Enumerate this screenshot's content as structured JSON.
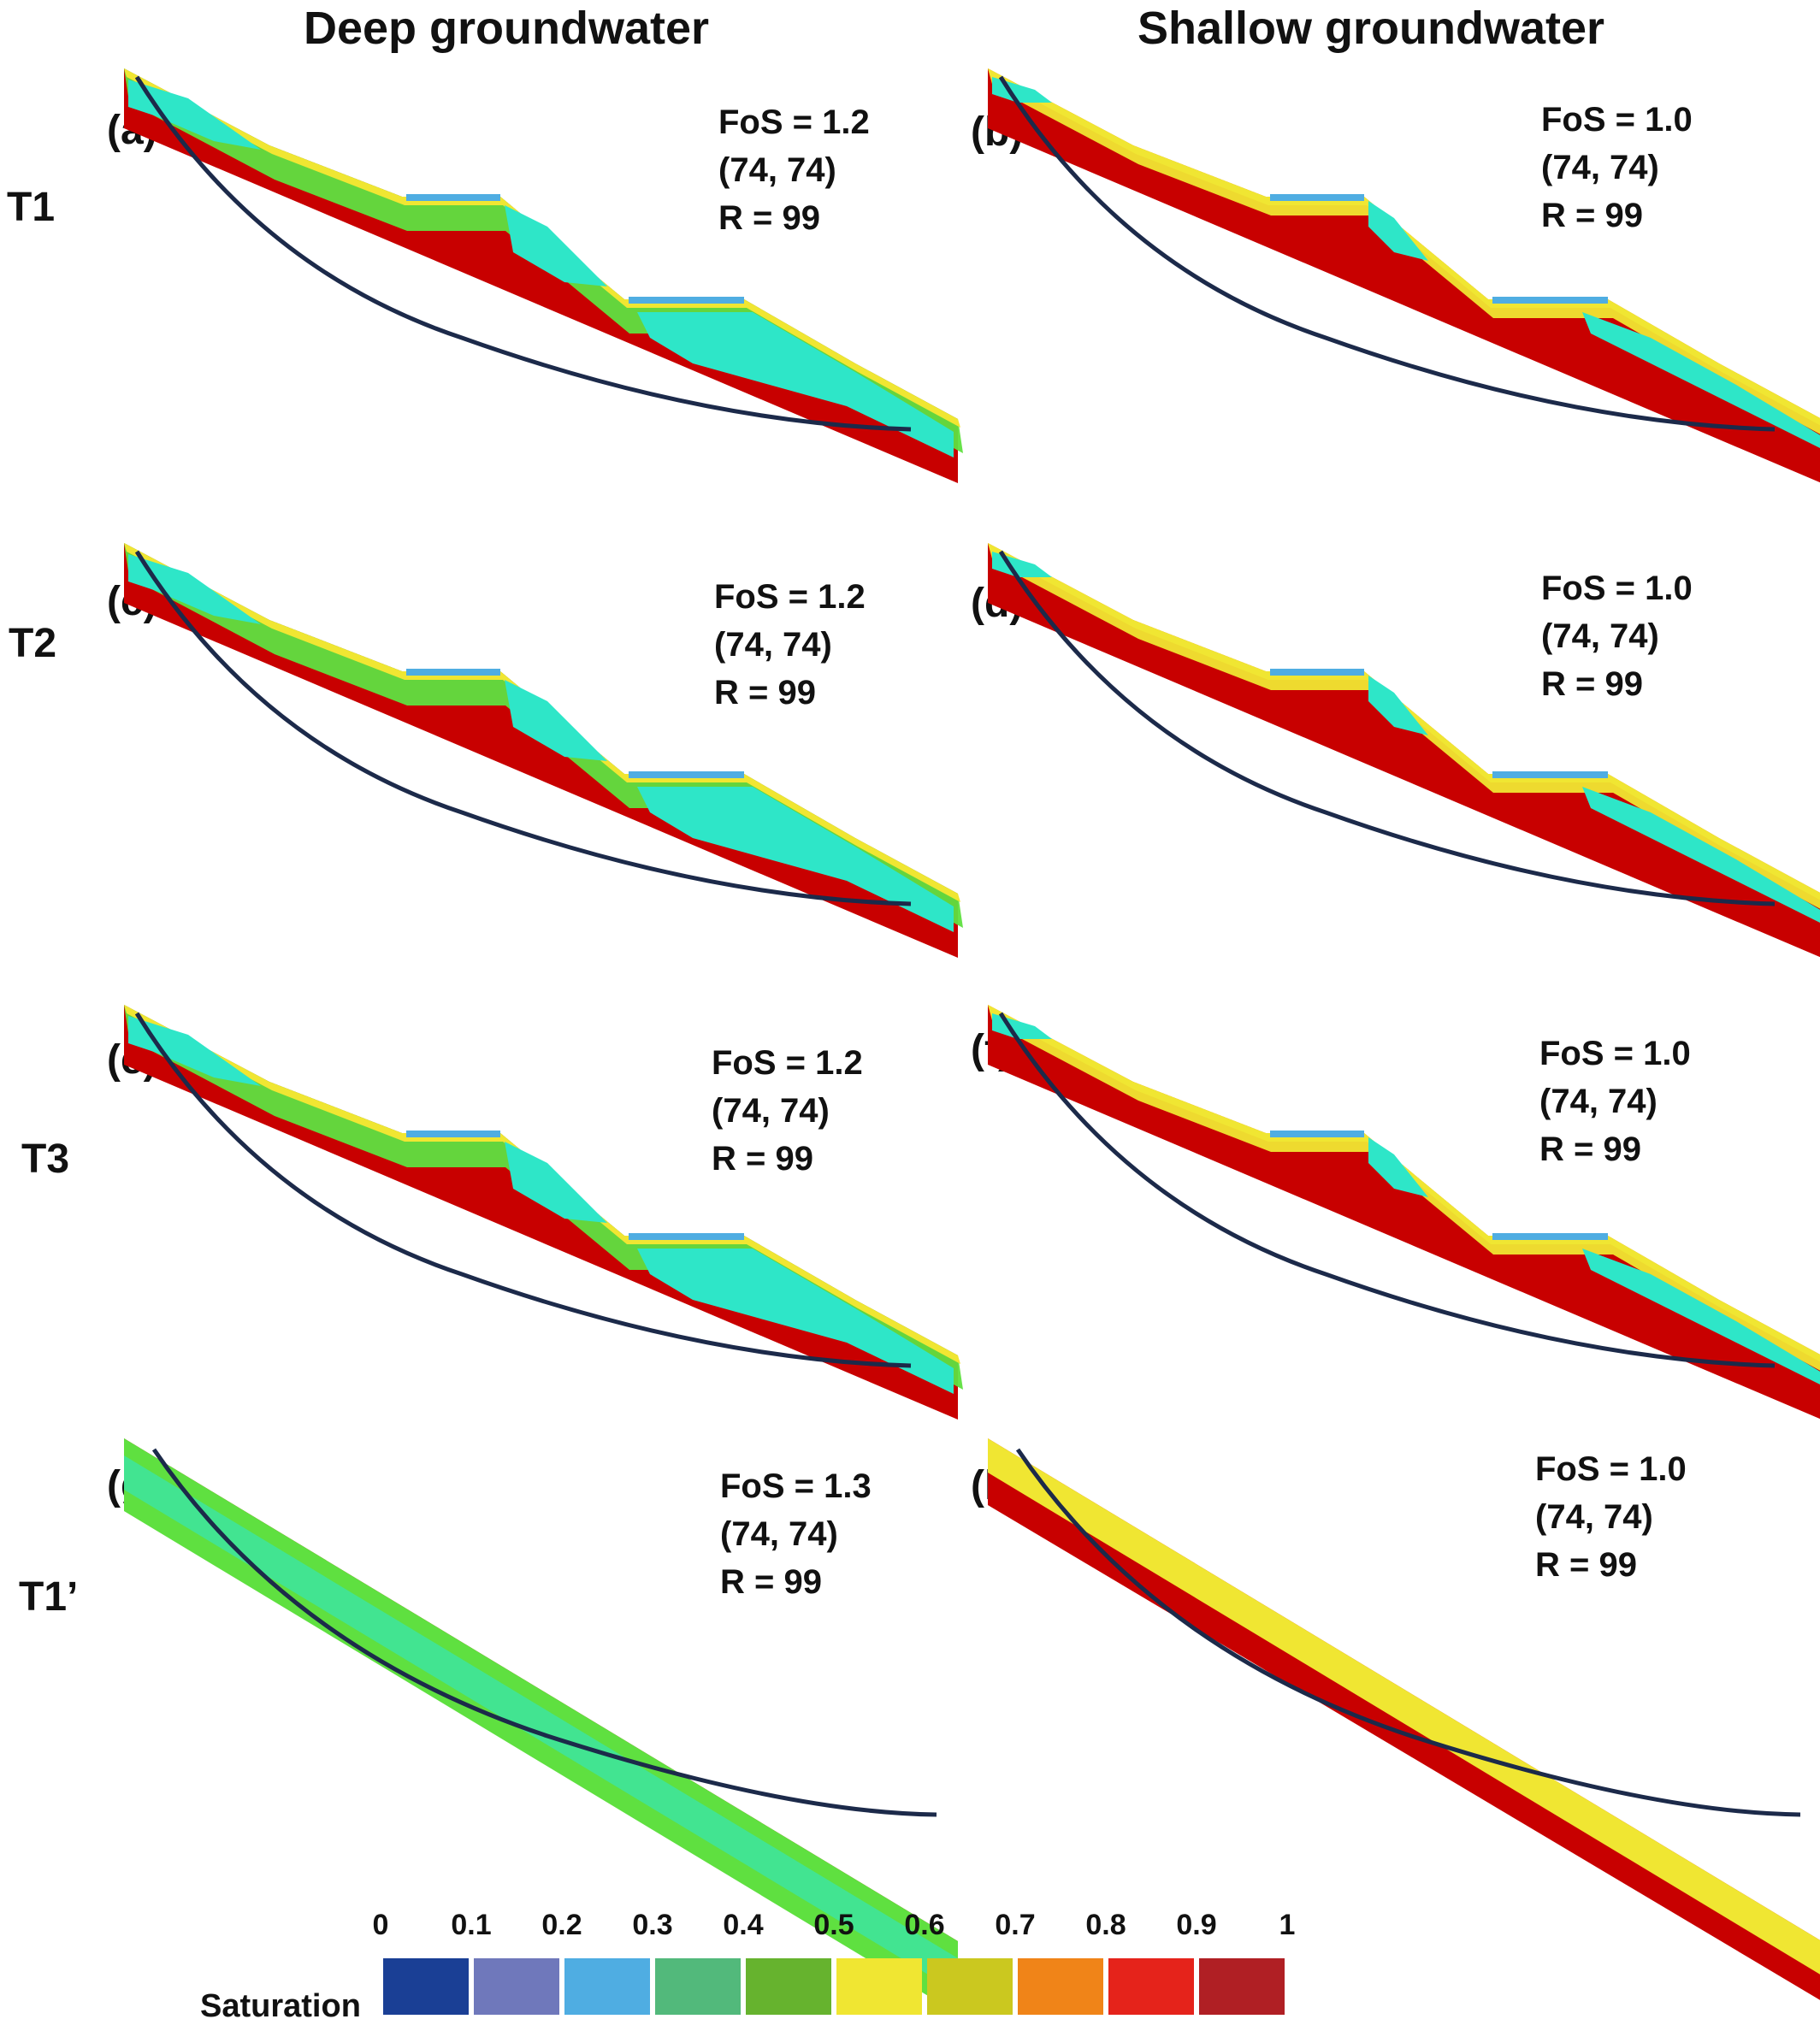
{
  "column_titles": [
    "Deep groundwater",
    "Shallow groundwater"
  ],
  "row_labels": [
    "T1",
    "T2",
    "T3",
    "T1’"
  ],
  "panels": [
    {
      "letter": "(a)",
      "fos": "FoS = 1.2",
      "center": "(74, 74)",
      "radius": "R = 99",
      "profile": "terraced",
      "groundwater": "deep"
    },
    {
      "letter": "(b)",
      "fos": "FoS = 1.0",
      "center": "(74, 74)",
      "radius": "R = 99",
      "profile": "terraced",
      "groundwater": "shallow"
    },
    {
      "letter": "(c)",
      "fos": "FoS = 1.2",
      "center": "(74, 74)",
      "radius": "R = 99",
      "profile": "terraced",
      "groundwater": "deep"
    },
    {
      "letter": "(d)",
      "fos": "FoS = 1.0",
      "center": "(74, 74)",
      "radius": "R = 99",
      "profile": "terraced",
      "groundwater": "shallow"
    },
    {
      "letter": "(e)",
      "fos": "FoS = 1.2",
      "center": "(74, 74)",
      "radius": "R = 99",
      "profile": "terraced",
      "groundwater": "deep"
    },
    {
      "letter": "(f)",
      "fos": "FoS = 1.0",
      "center": "(74, 74)",
      "radius": "R = 99",
      "profile": "terraced",
      "groundwater": "shallow"
    },
    {
      "letter": "(g)",
      "fos": "FoS = 1.3",
      "center": "(74, 74)",
      "radius": "R = 99",
      "profile": "planar",
      "groundwater": "deep"
    },
    {
      "letter": "(h)",
      "fos": "FoS = 1.0",
      "center": "(74, 74)",
      "radius": "R = 99",
      "profile": "planar",
      "groundwater": "shallow"
    }
  ],
  "legend": {
    "title": "Saturation",
    "ticks": [
      "0",
      "0.1",
      "0.2",
      "0.3",
      "0.4",
      "0.5",
      "0.6",
      "0.7",
      "0.8",
      "0.9",
      "1"
    ],
    "colors": [
      "#1a3f95",
      "#6f78bb",
      "#4fade2",
      "#52b97b",
      "#66b32e",
      "#f0e632",
      "#cbc81f",
      "#f08418",
      "#e5231b",
      "#b01f24"
    ]
  },
  "colors": {
    "saturated": "#c80000",
    "dry_core": "#2ee6c8",
    "transition_green": "#5fe040",
    "transition_yellow": "#f0e632",
    "transition_orange": "#f08418",
    "slip_surface": "#1c2a4a",
    "ponded_water": "#4fade2"
  }
}
